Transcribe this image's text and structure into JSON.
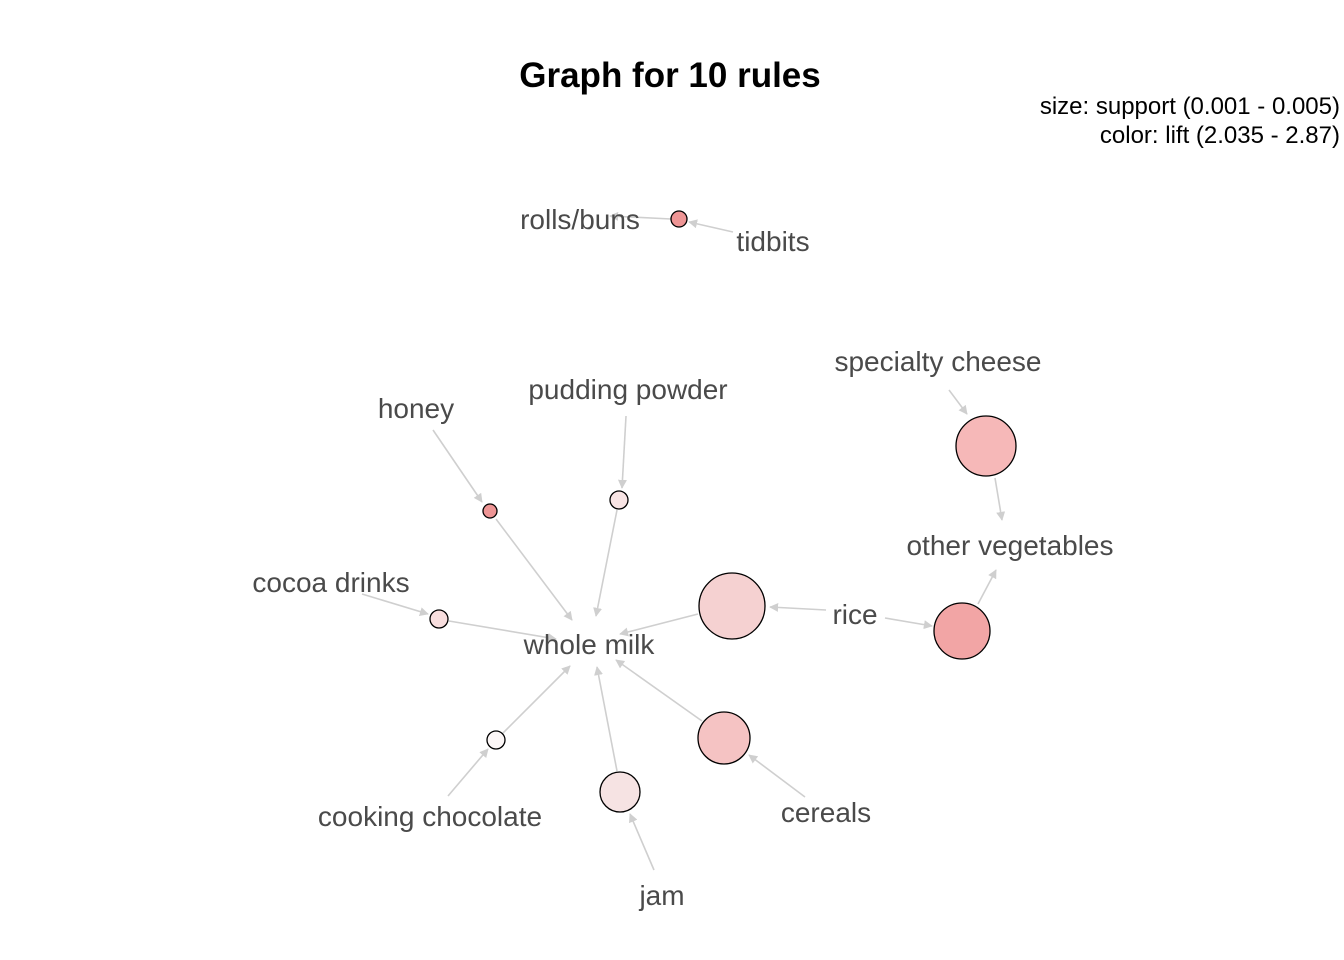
{
  "title": "Graph for 10 rules",
  "legend": {
    "size": "size: support (0.001 - 0.005)",
    "color": "color: lift (2.035 - 2.87)"
  },
  "colors": {
    "edge": "#cfcfcf",
    "label": "#4a4a4a",
    "node_stroke": "#000000"
  },
  "items": [
    {
      "id": "rolls_buns",
      "label": "rolls/buns"
    },
    {
      "id": "tidbits",
      "label": "tidbits"
    },
    {
      "id": "specialty_cheese",
      "label": "specialty cheese"
    },
    {
      "id": "pudding_powder",
      "label": "pudding powder"
    },
    {
      "id": "honey",
      "label": "honey"
    },
    {
      "id": "other_vegetables",
      "label": "other vegetables"
    },
    {
      "id": "cocoa_drinks",
      "label": "cocoa drinks"
    },
    {
      "id": "rice",
      "label": "rice"
    },
    {
      "id": "whole_milk",
      "label": "whole milk"
    },
    {
      "id": "cooking_chocolate",
      "label": "cooking chocolate"
    },
    {
      "id": "cereals",
      "label": "cereals"
    },
    {
      "id": "jam",
      "label": "jam"
    }
  ],
  "rules": [
    {
      "id": "r1",
      "lhs": [
        "tidbits"
      ],
      "rhs": "rolls_buns",
      "fill": "#ee9595"
    },
    {
      "id": "r2",
      "lhs": [
        "specialty_cheese"
      ],
      "rhs": "other_vegetables",
      "fill": "#f6b8b8"
    },
    {
      "id": "r3",
      "lhs": [
        "rice"
      ],
      "rhs": "other_vegetables",
      "fill": "#f2a5a5"
    },
    {
      "id": "r4",
      "lhs": [
        "rice"
      ],
      "rhs": "whole_milk",
      "fill": "#f5d1d1"
    },
    {
      "id": "r5",
      "lhs": [
        "pudding_powder"
      ],
      "rhs": "whole_milk",
      "fill": "#f8e4e4"
    },
    {
      "id": "r6",
      "lhs": [
        "honey"
      ],
      "rhs": "whole_milk",
      "fill": "#ee9595"
    },
    {
      "id": "r7",
      "lhs": [
        "cocoa_drinks"
      ],
      "rhs": "whole_milk",
      "fill": "#f8dede"
    },
    {
      "id": "r8",
      "lhs": [
        "cooking_chocolate"
      ],
      "rhs": "whole_milk",
      "fill": "#fcf7f7"
    },
    {
      "id": "r9",
      "lhs": [
        "cereals"
      ],
      "rhs": "whole_milk",
      "fill": "#f5c3c3"
    },
    {
      "id": "r10",
      "lhs": [
        "jam"
      ],
      "rhs": "whole_milk",
      "fill": "#f6e3e3"
    }
  ]
}
